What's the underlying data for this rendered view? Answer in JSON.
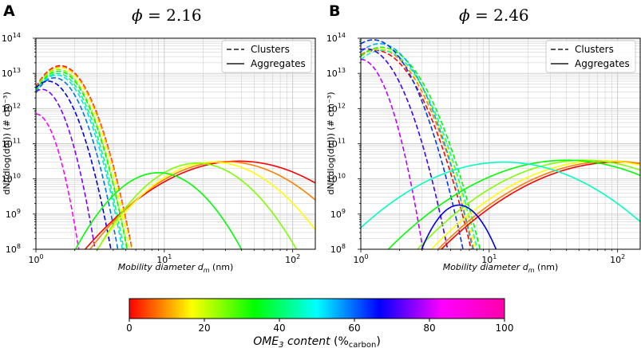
{
  "chart_data": [
    {
      "type": "line",
      "panel": "A",
      "title": "ϕ = 2.16",
      "phi_symbol": "ϕ",
      "phi_value": "2.16",
      "xlabel": "Mobility diameter",
      "xlabel_symbol": "d",
      "xlabel_sub": "m",
      "xlabel_unit": "(nm)",
      "ylabel": "dN/(dlog(dm)) (# cm⁻³)",
      "xscale": "log",
      "yscale": "log",
      "xlim": [
        1,
        150
      ],
      "ylim": [
        100000000.0,
        100000000000000.0
      ],
      "xticks": [
        {
          "v": 1,
          "m": "0"
        },
        {
          "v": 10,
          "m": "1"
        },
        {
          "v": 100,
          "m": "2"
        }
      ],
      "yticks": [
        {
          "v": 100000000.0,
          "m": "8"
        },
        {
          "v": 1000000000.0,
          "m": "9"
        },
        {
          "v": 10000000000.0,
          "m": "10"
        },
        {
          "v": 100000000000.0,
          "m": "11"
        },
        {
          "v": 1000000000000.0,
          "m": "12"
        },
        {
          "v": 10000000000000.0,
          "m": "13"
        },
        {
          "v": 100000000000000.0,
          "m": "14"
        }
      ],
      "legend": {
        "position": "top-right",
        "entries": [
          {
            "label": "Clusters",
            "style": "dashed"
          },
          {
            "label": "Aggregates",
            "style": "solid"
          }
        ]
      },
      "series": [
        {
          "name": "Clusters 0%",
          "style": "dashed",
          "ome3_content": 0,
          "mode": 1.55,
          "peak": 16500000000000.0,
          "sigma": 1.3
        },
        {
          "name": "Clusters 10%",
          "style": "dashed",
          "ome3_content": 10,
          "mode": 1.55,
          "peak": 15500000000000.0,
          "sigma": 1.3
        },
        {
          "name": "Clusters 20%",
          "style": "dashed",
          "ome3_content": 20,
          "mode": 1.55,
          "peak": 14500000000000.0,
          "sigma": 1.29
        },
        {
          "name": "Clusters 30%",
          "style": "dashed",
          "ome3_content": 30,
          "mode": 1.5,
          "peak": 13000000000000.0,
          "sigma": 1.29
        },
        {
          "name": "Clusters 40%",
          "style": "dashed",
          "ome3_content": 40,
          "mode": 1.5,
          "peak": 11500000000000.0,
          "sigma": 1.29
        },
        {
          "name": "Clusters 50%",
          "style": "dashed",
          "ome3_content": 50,
          "mode": 1.48,
          "peak": 10000000000000.0,
          "sigma": 1.28
        },
        {
          "name": "Clusters 60%",
          "style": "dashed",
          "ome3_content": 60,
          "mode": 1.45,
          "peak": 9000000000000.0,
          "sigma": 1.28
        },
        {
          "name": "Clusters 70%",
          "style": "dashed",
          "ome3_content": 70,
          "mode": 1.4,
          "peak": 7500000000000.0,
          "sigma": 1.27
        },
        {
          "name": "Clusters 80%",
          "style": "dashed",
          "ome3_content": 80,
          "mode": 1.25,
          "peak": 6000000000000.0,
          "sigma": 1.27
        },
        {
          "name": "Clusters 90%",
          "style": "dashed",
          "ome3_content": 90,
          "mode": 1.12,
          "peak": 3500000000000.0,
          "sigma": 1.23
        },
        {
          "name": "Clusters 100%",
          "style": "dashed",
          "ome3_content": 100,
          "mode": 1.0,
          "peak": 700000000000.0,
          "sigma": 1.2
        },
        {
          "name": "Aggregates 0%",
          "style": "solid",
          "ome3_content": 0,
          "mode": 38,
          "peak": 32000000000.0,
          "sigma": 2.25
        },
        {
          "name": "Aggregates 10%",
          "style": "solid",
          "ome3_content": 10,
          "mode": 30,
          "peak": 31000000000.0,
          "sigma": 2.05
        },
        {
          "name": "Aggregates 20%",
          "style": "solid",
          "ome3_content": 20,
          "mode": 24,
          "peak": 30000000000.0,
          "sigma": 1.85
        },
        {
          "name": "Aggregates 30%",
          "style": "solid",
          "ome3_content": 30,
          "mode": 18,
          "peak": 28000000000.0,
          "sigma": 1.7
        },
        {
          "name": "Aggregates 40%",
          "style": "solid",
          "ome3_content": 40,
          "mode": 9,
          "peak": 15000000000.0,
          "sigma": 1.6
        }
      ]
    },
    {
      "type": "line",
      "panel": "B",
      "title": "ϕ = 2.46",
      "phi_symbol": "ϕ",
      "phi_value": "2.46",
      "xlabel": "Mobility diameter",
      "xlabel_symbol": "d",
      "xlabel_sub": "m",
      "xlabel_unit": "(nm)",
      "ylabel": "dN/(dlog(dm)) (# cm⁻³)",
      "xscale": "log",
      "yscale": "log",
      "xlim": [
        1,
        150
      ],
      "ylim": [
        100000000.0,
        100000000000000.0
      ],
      "xticks": [
        {
          "v": 1,
          "m": "0"
        },
        {
          "v": 10,
          "m": "1"
        },
        {
          "v": 100,
          "m": "2"
        }
      ],
      "yticks": [
        {
          "v": 100000000.0,
          "m": "8"
        },
        {
          "v": 1000000000.0,
          "m": "9"
        },
        {
          "v": 10000000000.0,
          "m": "10"
        },
        {
          "v": 100000000000.0,
          "m": "11"
        },
        {
          "v": 1000000000000.0,
          "m": "12"
        },
        {
          "v": 10000000000000.0,
          "m": "13"
        },
        {
          "v": 100000000000000.0,
          "m": "14"
        }
      ],
      "legend": {
        "position": "top-right",
        "entries": [
          {
            "label": "Clusters",
            "style": "dashed"
          },
          {
            "label": "Aggregates",
            "style": "solid"
          }
        ]
      },
      "series": [
        {
          "name": "Clusters 0%",
          "style": "dashed",
          "ome3_content": 0,
          "mode": 1.3,
          "peak": 45000000000000.0,
          "sigma": 1.4
        },
        {
          "name": "Clusters 10%",
          "style": "dashed",
          "ome3_content": 10,
          "mode": 1.35,
          "peak": 50000000000000.0,
          "sigma": 1.4
        },
        {
          "name": "Clusters 20%",
          "style": "dashed",
          "ome3_content": 20,
          "mode": 1.4,
          "peak": 50000000000000.0,
          "sigma": 1.4
        },
        {
          "name": "Clusters 40%",
          "style": "dashed",
          "ome3_content": 40,
          "mode": 1.45,
          "peak": 55000000000000.0,
          "sigma": 1.41
        },
        {
          "name": "Clusters 55%",
          "style": "dashed",
          "ome3_content": 55,
          "mode": 1.45,
          "peak": 45000000000000.0,
          "sigma": 1.4
        },
        {
          "name": "Clusters 65%",
          "style": "dashed",
          "ome3_content": 65,
          "mode": 1.4,
          "peak": 70000000000000.0,
          "sigma": 1.38
        },
        {
          "name": "Clusters 75%",
          "style": "dashed",
          "ome3_content": 75,
          "mode": 1.25,
          "peak": 90000000000000.0,
          "sigma": 1.36
        },
        {
          "name": "Clusters 85%",
          "style": "dashed",
          "ome3_content": 85,
          "mode": 1.1,
          "peak": 50000000000000.0,
          "sigma": 1.33
        },
        {
          "name": "Clusters 95%",
          "style": "dashed",
          "ome3_content": 95,
          "mode": 1.0,
          "peak": 25000000000000.0,
          "sigma": 1.25
        },
        {
          "name": "Aggregates 0%",
          "style": "solid",
          "ome3_content": 0,
          "mode": 100,
          "peak": 30000000000.0,
          "sigma": 2.55
        },
        {
          "name": "Aggregates 10%",
          "style": "solid",
          "ome3_content": 10,
          "mode": 90,
          "peak": 32000000000.0,
          "sigma": 2.5
        },
        {
          "name": "Aggregates 20%",
          "style": "solid",
          "ome3_content": 20,
          "mode": 75,
          "peak": 33000000000.0,
          "sigma": 2.45
        },
        {
          "name": "Aggregates 30%",
          "style": "solid",
          "ome3_content": 30,
          "mode": 55,
          "peak": 34000000000.0,
          "sigma": 2.4
        },
        {
          "name": "Aggregates 40%",
          "style": "solid",
          "ome3_content": 40,
          "mode": 40,
          "peak": 34000000000.0,
          "sigma": 2.55
        },
        {
          "name": "Aggregates 55%",
          "style": "solid",
          "ome3_content": 55,
          "mode": 13,
          "peak": 30000000000.0,
          "sigma": 2.4
        },
        {
          "name": "Aggregates 80%",
          "style": "solid",
          "ome3_content": 80,
          "mode": 5.8,
          "peak": 1800000000.0,
          "sigma": 1.32
        }
      ]
    }
  ],
  "colorbar": {
    "label_prefix": "OME",
    "label_sub": "3",
    "label_mid": "content",
    "label_unit_open": "(%",
    "label_unit_sub": "carbon",
    "label_unit_close": ")",
    "range": [
      0,
      100
    ],
    "ticks": [
      "0",
      "20",
      "40",
      "60",
      "80",
      "100"
    ],
    "colormap": "hsv (red → yellow → green → cyan → blue → magenta)"
  },
  "colors": {
    "grid": "#c8c8c8",
    "axis": "#000000",
    "legend_line": "#555555",
    "background": "#ffffff"
  }
}
